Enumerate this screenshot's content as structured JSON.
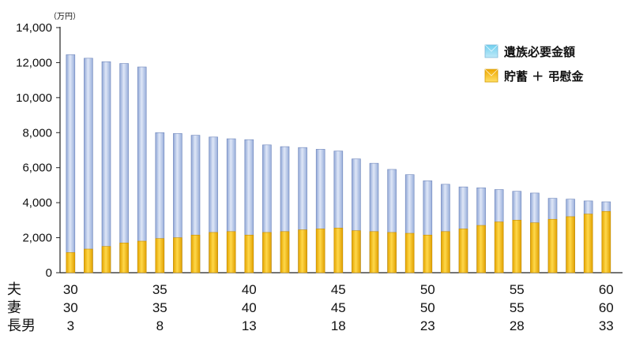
{
  "chart_data": {
    "type": "bar",
    "unit_label": "（万円）",
    "y_ticks": [
      "0",
      "2,000",
      "4,000",
      "6,000",
      "8,000",
      "10,000",
      "12,000",
      "14,000"
    ],
    "ylim": [
      0,
      14000
    ],
    "grid": false,
    "legend_position": "top-right",
    "x": [
      30,
      31,
      32,
      33,
      34,
      35,
      36,
      37,
      38,
      39,
      40,
      41,
      42,
      43,
      44,
      45,
      46,
      47,
      48,
      49,
      50,
      51,
      52,
      53,
      54,
      55,
      56,
      57,
      58,
      59,
      60
    ],
    "series": [
      {
        "name": "遺族必要金額",
        "color": "#b4c6e8",
        "values": [
          12450,
          12250,
          12050,
          11950,
          11750,
          8000,
          7950,
          7850,
          7750,
          7650,
          7600,
          7300,
          7200,
          7150,
          7050,
          6950,
          6500,
          6250,
          5900,
          5600,
          5250,
          5050,
          4900,
          4850,
          4750,
          4650,
          4550,
          4250,
          4200,
          4100,
          4050
        ]
      },
      {
        "name": "貯蓄 ＋ 弔慰金",
        "color": "#f5b800",
        "values": [
          1150,
          1350,
          1500,
          1700,
          1800,
          1950,
          2000,
          2150,
          2300,
          2350,
          2150,
          2300,
          2350,
          2450,
          2500,
          2550,
          2400,
          2350,
          2300,
          2250,
          2150,
          2350,
          2500,
          2700,
          2900,
          3000,
          2850,
          3050,
          3200,
          3350,
          3500
        ]
      }
    ],
    "x_rows": [
      {
        "label": "夫",
        "ticks": [
          "30",
          "35",
          "40",
          "45",
          "50",
          "55",
          "60"
        ]
      },
      {
        "label": "妻",
        "ticks": [
          "30",
          "35",
          "40",
          "45",
          "50",
          "55",
          "60"
        ]
      },
      {
        "label": "長男",
        "ticks": [
          "3",
          "8",
          "13",
          "18",
          "23",
          "28",
          "33"
        ]
      }
    ]
  }
}
